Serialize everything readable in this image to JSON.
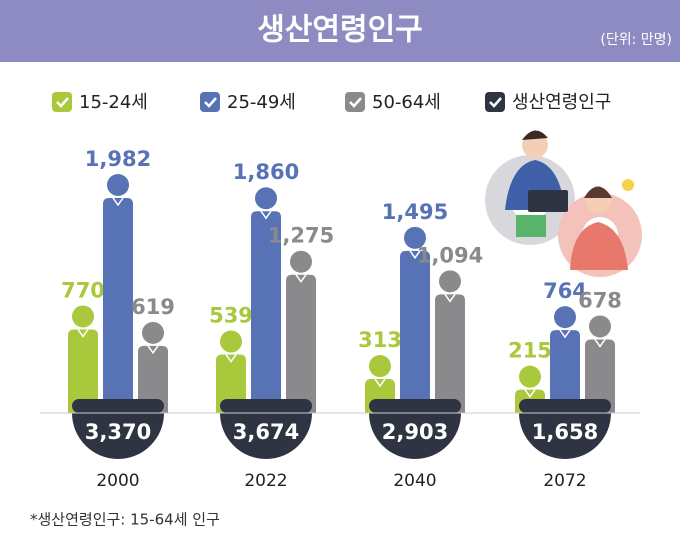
{
  "chart_data": {
    "type": "bar",
    "title": "생산연령인구",
    "subtitle": "(단위: 만명)",
    "categories": [
      "2000",
      "2022",
      "2040",
      "2072"
    ],
    "series": [
      {
        "name": "15-24세",
        "color": "#a9c83c",
        "values": [
          770,
          539,
          313,
          215
        ],
        "value_labels": [
          "770",
          "539",
          "313",
          "215"
        ]
      },
      {
        "name": "25-49세",
        "color": "#5872b6",
        "values": [
          1982,
          1860,
          1495,
          764
        ],
        "value_labels": [
          "1,982",
          "1,860",
          "1,495",
          "764"
        ]
      },
      {
        "name": "50-64세",
        "color": "#8a8a8c",
        "values": [
          619,
          1275,
          1094,
          678
        ],
        "value_labels": [
          "619",
          "1,275",
          "1,094",
          "678"
        ]
      },
      {
        "name": "생산연령인구",
        "color": "#2f3442",
        "values": [
          3370,
          3674,
          2903,
          1658
        ],
        "value_labels": [
          "3,370",
          "3,674",
          "2,903",
          "1,658"
        ]
      }
    ],
    "annotation": "*생산연령인구: 15-64세 인구"
  }
}
